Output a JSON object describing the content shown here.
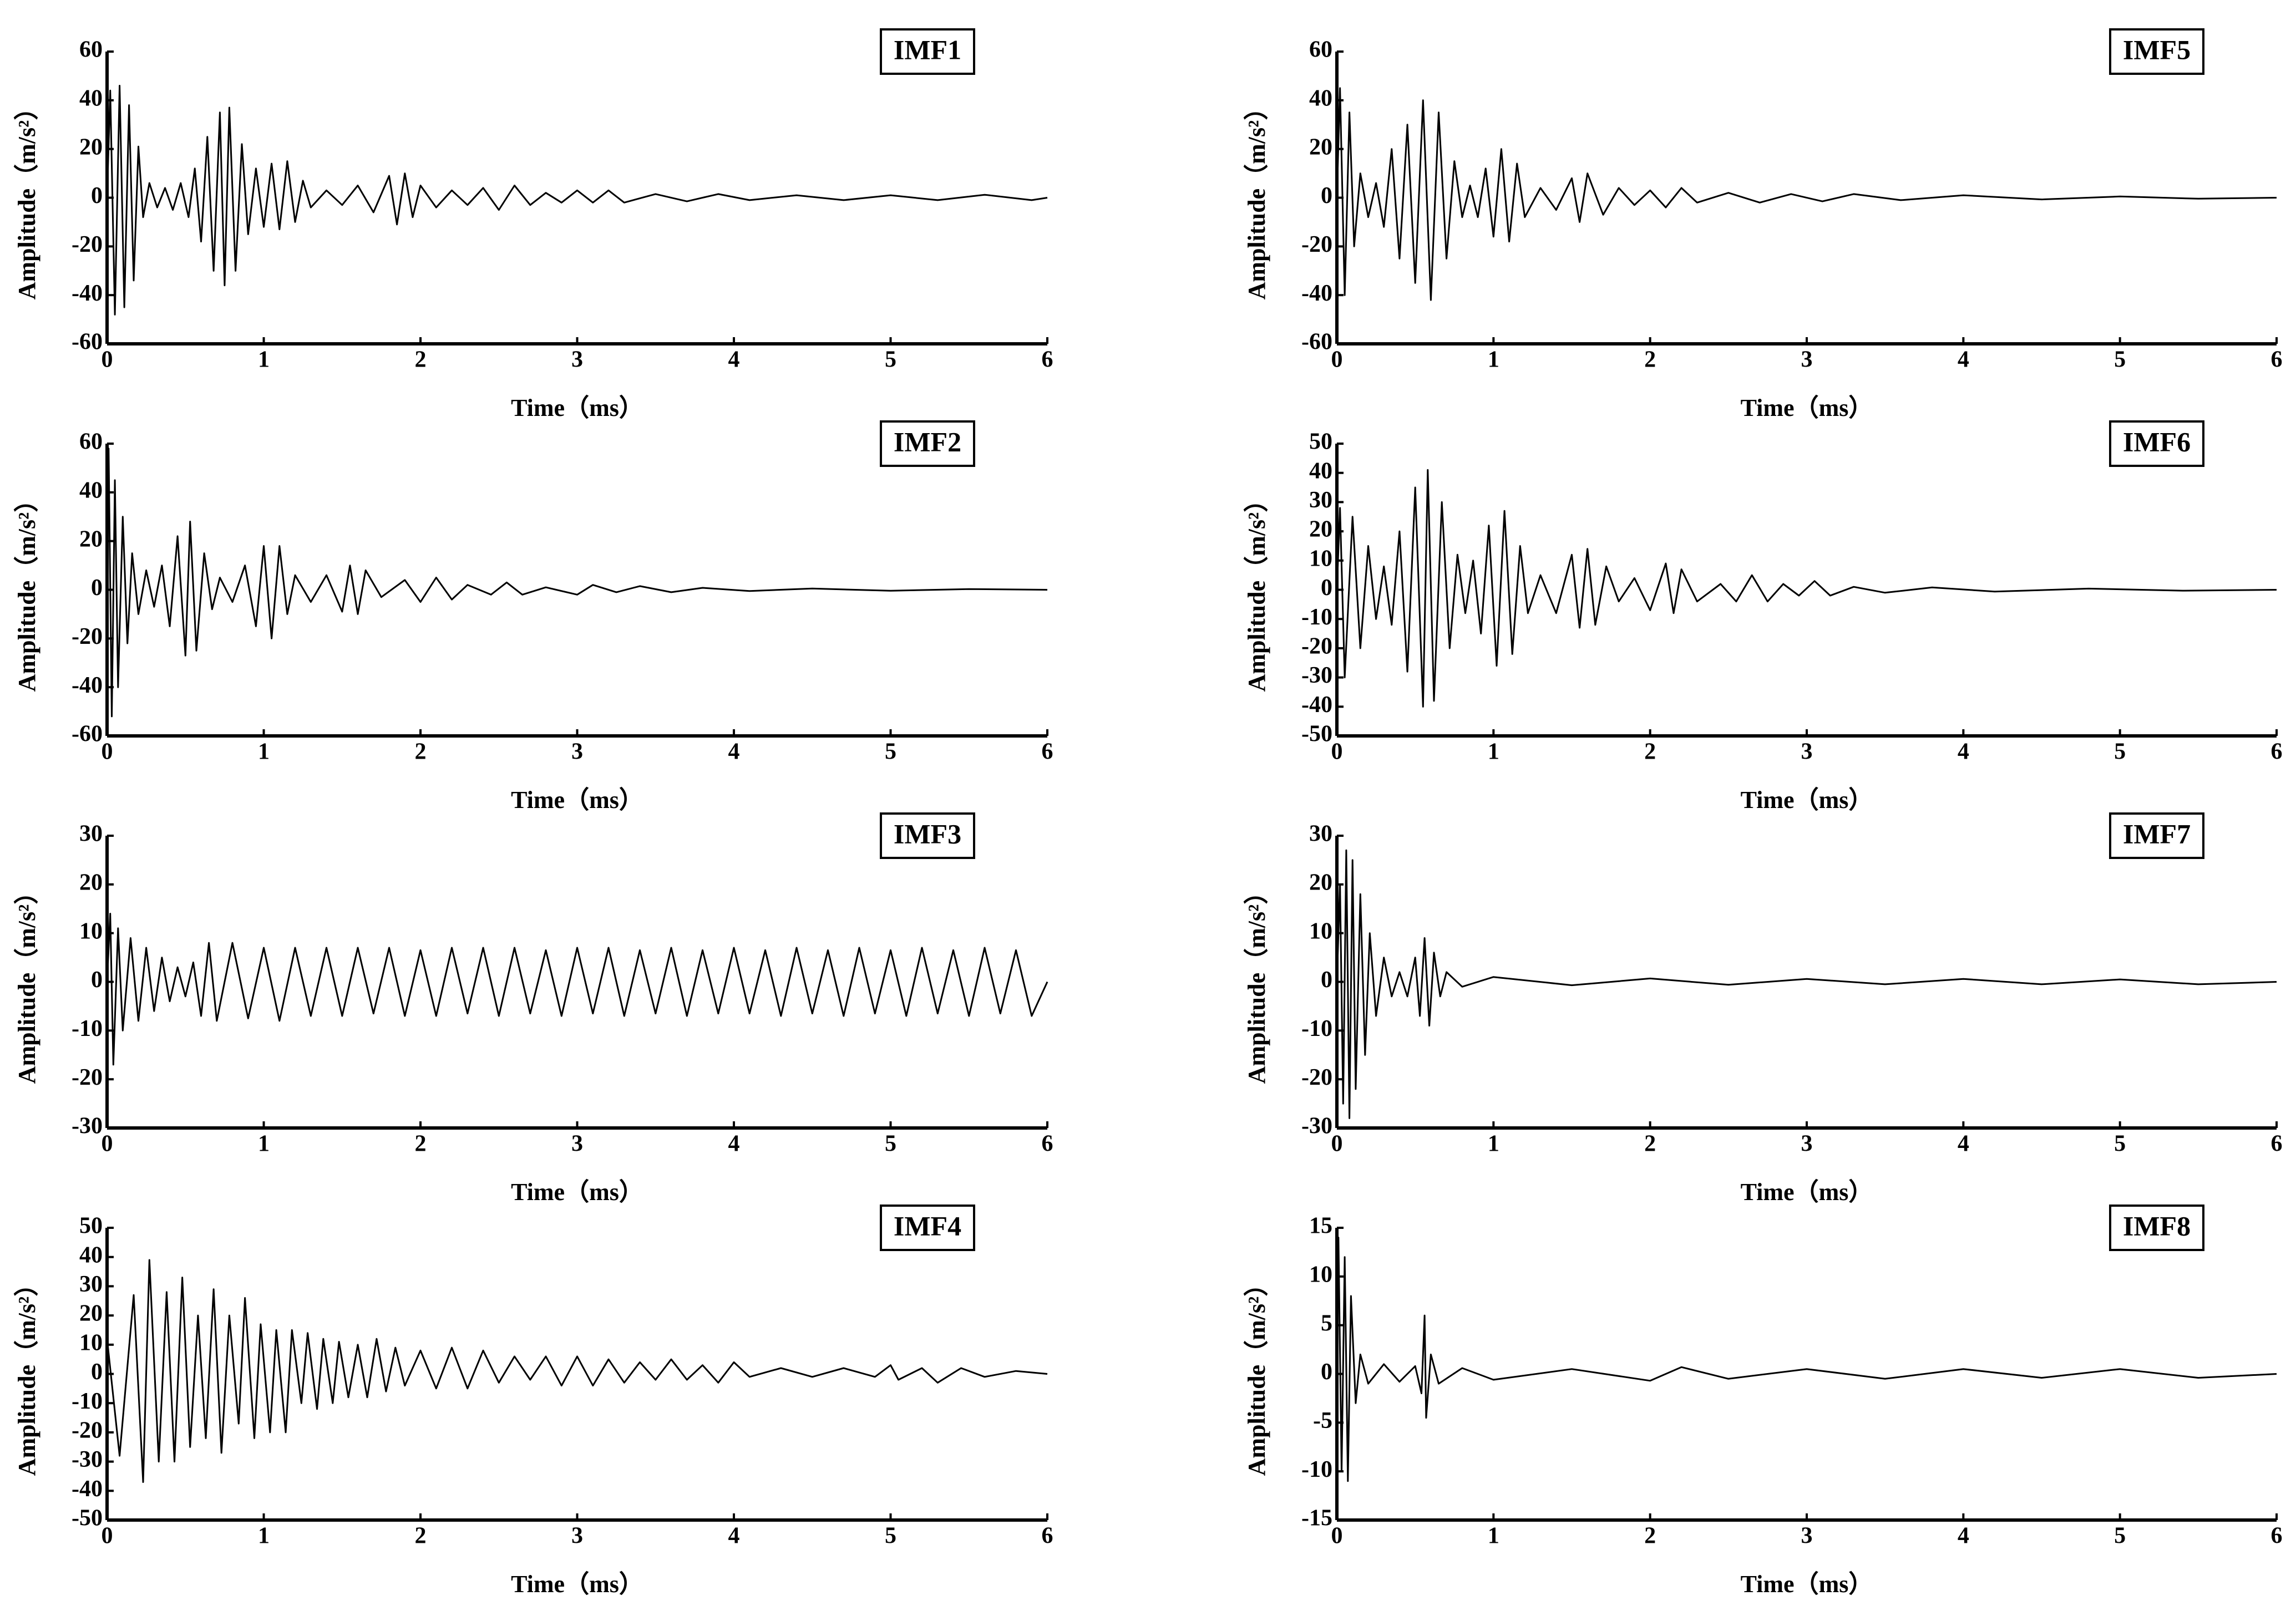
{
  "chart_data": [
    {
      "type": "line",
      "title": "IMF1",
      "xlabel": "Time（ms）",
      "ylabel": "Amplitude（m/s²）",
      "color": "#000000",
      "xlim": [
        0,
        6
      ],
      "xticks": [
        0,
        1,
        2,
        3,
        4,
        5,
        6
      ],
      "ylim": [
        -60,
        60
      ],
      "yticks": [
        -60,
        -40,
        -20,
        0,
        20,
        40,
        60
      ],
      "x": [
        0,
        0.02,
        0.05,
        0.08,
        0.11,
        0.14,
        0.17,
        0.2,
        0.23,
        0.27,
        0.32,
        0.37,
        0.42,
        0.47,
        0.52,
        0.56,
        0.6,
        0.64,
        0.68,
        0.72,
        0.75,
        0.78,
        0.82,
        0.86,
        0.9,
        0.95,
        1.0,
        1.05,
        1.1,
        1.15,
        1.2,
        1.25,
        1.3,
        1.4,
        1.5,
        1.6,
        1.7,
        1.8,
        1.85,
        1.9,
        1.95,
        2.0,
        2.1,
        2.2,
        2.3,
        2.4,
        2.5,
        2.6,
        2.7,
        2.8,
        2.9,
        3.0,
        3.1,
        3.2,
        3.3,
        3.5,
        3.7,
        3.9,
        4.1,
        4.4,
        4.7,
        5.0,
        5.3,
        5.6,
        5.9,
        6.0
      ],
      "values": [
        0,
        44,
        -48,
        46,
        -45,
        38,
        -34,
        21,
        -8,
        6,
        -4,
        4,
        -5,
        6,
        -8,
        12,
        -18,
        25,
        -30,
        35,
        -36,
        37,
        -30,
        22,
        -15,
        12,
        -12,
        14,
        -13,
        15,
        -10,
        7,
        -4,
        3,
        -3,
        5,
        -6,
        9,
        -11,
        10,
        -8,
        5,
        -4,
        3,
        -3,
        4,
        -5,
        5,
        -3,
        2,
        -2,
        3,
        -2,
        3,
        -2,
        1.5,
        -1.5,
        1.5,
        -1,
        1,
        -1,
        1,
        -1,
        1.2,
        -1,
        0
      ]
    },
    {
      "type": "line",
      "title": "IMF2",
      "xlabel": "Time（ms）",
      "ylabel": "Amplitude（m/s²）",
      "color": "#000000",
      "xlim": [
        0,
        6
      ],
      "xticks": [
        0,
        1,
        2,
        3,
        4,
        5,
        6
      ],
      "ylim": [
        -60,
        60
      ],
      "yticks": [
        -60,
        -40,
        -20,
        0,
        20,
        40,
        60
      ],
      "x": [
        0,
        0.01,
        0.03,
        0.05,
        0.07,
        0.1,
        0.13,
        0.16,
        0.2,
        0.25,
        0.3,
        0.35,
        0.4,
        0.45,
        0.5,
        0.53,
        0.57,
        0.62,
        0.67,
        0.72,
        0.8,
        0.88,
        0.95,
        1.0,
        1.05,
        1.1,
        1.15,
        1.2,
        1.3,
        1.4,
        1.5,
        1.55,
        1.6,
        1.65,
        1.75,
        1.9,
        2.0,
        2.1,
        2.2,
        2.3,
        2.45,
        2.55,
        2.65,
        2.8,
        3.0,
        3.1,
        3.25,
        3.4,
        3.6,
        3.8,
        4.1,
        4.5,
        5.0,
        5.5,
        6.0
      ],
      "values": [
        0,
        58,
        -52,
        45,
        -40,
        30,
        -22,
        15,
        -10,
        8,
        -7,
        10,
        -15,
        22,
        -27,
        28,
        -25,
        15,
        -8,
        5,
        -5,
        10,
        -15,
        18,
        -20,
        18,
        -10,
        6,
        -5,
        6,
        -9,
        10,
        -10,
        8,
        -3,
        4,
        -5,
        5,
        -4,
        2,
        -2,
        3,
        -2,
        1,
        -2,
        2,
        -1,
        1.5,
        -1,
        0.8,
        -0.5,
        0.5,
        -0.4,
        0.3,
        0
      ]
    },
    {
      "type": "line",
      "title": "IMF3",
      "xlabel": "Time（ms）",
      "ylabel": "Amplitude（m/s²）",
      "color": "#000000",
      "xlim": [
        0,
        6
      ],
      "xticks": [
        0,
        1,
        2,
        3,
        4,
        5,
        6
      ],
      "ylim": [
        -30,
        30
      ],
      "yticks": [
        -30,
        -20,
        -10,
        0,
        10,
        20,
        30
      ],
      "x": [
        0,
        0.02,
        0.04,
        0.07,
        0.1,
        0.15,
        0.2,
        0.25,
        0.3,
        0.35,
        0.4,
        0.45,
        0.5,
        0.55,
        0.6,
        0.65,
        0.7,
        0.8,
        0.9,
        1.0,
        1.1,
        1.2,
        1.3,
        1.4,
        1.5,
        1.6,
        1.7,
        1.8,
        1.9,
        2.0,
        2.1,
        2.2,
        2.3,
        2.4,
        2.5,
        2.6,
        2.7,
        2.8,
        2.9,
        3.0,
        3.1,
        3.2,
        3.3,
        3.4,
        3.5,
        3.6,
        3.7,
        3.8,
        3.9,
        4.0,
        4.1,
        4.2,
        4.3,
        4.4,
        4.5,
        4.6,
        4.7,
        4.8,
        4.9,
        5.0,
        5.1,
        5.2,
        5.3,
        5.4,
        5.5,
        5.6,
        5.7,
        5.8,
        5.9,
        6.0
      ],
      "values": [
        0,
        14,
        -17,
        11,
        -10,
        9,
        -8,
        7,
        -6,
        5,
        -4,
        3,
        -3,
        4,
        -7,
        8,
        -8,
        8,
        -7.5,
        7,
        -8,
        7,
        -7,
        7,
        -7,
        7,
        -6.5,
        7,
        -7,
        6.5,
        -7,
        7,
        -6.5,
        7,
        -7,
        7,
        -6.5,
        6.5,
        -7,
        7,
        -6.5,
        7,
        -7,
        6.5,
        -6.5,
        7,
        -7,
        6.5,
        -6.5,
        7,
        -6.5,
        6.5,
        -7,
        7,
        -6.5,
        6.5,
        -7,
        7,
        -6.5,
        6.5,
        -7,
        7,
        -6.5,
        6.5,
        -7,
        7,
        -6.5,
        6.5,
        -7,
        0
      ]
    },
    {
      "type": "line",
      "title": "IMF4",
      "xlabel": "Time（ms）",
      "ylabel": "Amplitude（m/s²）",
      "color": "#000000",
      "xlim": [
        0,
        6
      ],
      "xticks": [
        0,
        1,
        2,
        3,
        4,
        5,
        6
      ],
      "ylim": [
        -50,
        50
      ],
      "yticks": [
        -50,
        -40,
        -30,
        -20,
        -10,
        0,
        10,
        20,
        30,
        40,
        50
      ],
      "x": [
        0,
        0.08,
        0.17,
        0.23,
        0.27,
        0.33,
        0.38,
        0.43,
        0.48,
        0.53,
        0.58,
        0.63,
        0.68,
        0.73,
        0.78,
        0.84,
        0.88,
        0.94,
        0.98,
        1.04,
        1.08,
        1.14,
        1.18,
        1.24,
        1.28,
        1.34,
        1.38,
        1.44,
        1.48,
        1.54,
        1.6,
        1.66,
        1.72,
        1.78,
        1.84,
        1.9,
        2.0,
        2.1,
        2.2,
        2.3,
        2.4,
        2.5,
        2.6,
        2.7,
        2.8,
        2.9,
        3.0,
        3.1,
        3.2,
        3.3,
        3.4,
        3.5,
        3.6,
        3.7,
        3.8,
        3.9,
        4.0,
        4.1,
        4.3,
        4.5,
        4.7,
        4.9,
        5.0,
        5.05,
        5.2,
        5.3,
        5.45,
        5.6,
        5.8,
        6.0
      ],
      "values": [
        12,
        -28,
        27,
        -37,
        39,
        -30,
        28,
        -30,
        33,
        -25,
        20,
        -22,
        29,
        -27,
        20,
        -17,
        26,
        -22,
        17,
        -20,
        15,
        -20,
        15,
        -10,
        14,
        -12,
        12,
        -10,
        11,
        -8,
        10,
        -8,
        12,
        -6,
        9,
        -4,
        8,
        -5,
        9,
        -5,
        8,
        -3,
        6,
        -2,
        6,
        -4,
        6,
        -4,
        5,
        -3,
        4,
        -2,
        5,
        -2,
        3,
        -3,
        4,
        -1,
        2,
        -1,
        2,
        -1,
        3,
        -2,
        2,
        -3,
        2,
        -1,
        1,
        0
      ]
    },
    {
      "type": "line",
      "title": "IMF5",
      "xlabel": "Time（ms）",
      "ylabel": "Amplitude（m/s²）",
      "color": "#000000",
      "xlim": [
        0,
        6
      ],
      "xticks": [
        0,
        1,
        2,
        3,
        4,
        5,
        6
      ],
      "ylim": [
        -60,
        60
      ],
      "yticks": [
        -60,
        -40,
        -20,
        0,
        20,
        40,
        60
      ],
      "x": [
        0,
        0.02,
        0.05,
        0.08,
        0.11,
        0.15,
        0.2,
        0.25,
        0.3,
        0.35,
        0.4,
        0.45,
        0.5,
        0.55,
        0.6,
        0.65,
        0.7,
        0.75,
        0.8,
        0.85,
        0.9,
        0.95,
        1.0,
        1.05,
        1.1,
        1.15,
        1.2,
        1.3,
        1.4,
        1.5,
        1.55,
        1.6,
        1.7,
        1.8,
        1.9,
        2.0,
        2.1,
        2.2,
        2.3,
        2.5,
        2.7,
        2.9,
        3.1,
        3.3,
        3.6,
        4.0,
        4.5,
        5.0,
        5.5,
        6.0
      ],
      "values": [
        0,
        45,
        -40,
        35,
        -20,
        10,
        -8,
        6,
        -12,
        20,
        -25,
        30,
        -35,
        40,
        -42,
        35,
        -25,
        15,
        -8,
        5,
        -8,
        12,
        -16,
        20,
        -18,
        14,
        -8,
        4,
        -5,
        8,
        -10,
        10,
        -7,
        4,
        -3,
        3,
        -4,
        4,
        -2,
        2,
        -2,
        1.5,
        -1.5,
        1.5,
        -1,
        1,
        -0.7,
        0.5,
        -0.4,
        0
      ]
    },
    {
      "type": "line",
      "title": "IMF6",
      "xlabel": "Time（ms）",
      "ylabel": "Amplitude（m/s²）",
      "color": "#000000",
      "xlim": [
        0,
        6
      ],
      "xticks": [
        0,
        1,
        2,
        3,
        4,
        5,
        6
      ],
      "ylim": [
        -50,
        50
      ],
      "yticks": [
        -50,
        -40,
        -30,
        -20,
        -10,
        0,
        10,
        20,
        30,
        40,
        50
      ],
      "x": [
        0,
        0.02,
        0.05,
        0.1,
        0.15,
        0.2,
        0.25,
        0.3,
        0.35,
        0.4,
        0.45,
        0.5,
        0.55,
        0.58,
        0.62,
        0.67,
        0.72,
        0.77,
        0.82,
        0.87,
        0.92,
        0.97,
        1.02,
        1.07,
        1.12,
        1.17,
        1.22,
        1.3,
        1.4,
        1.5,
        1.55,
        1.6,
        1.65,
        1.72,
        1.8,
        1.9,
        2.0,
        2.1,
        2.15,
        2.2,
        2.3,
        2.45,
        2.55,
        2.65,
        2.75,
        2.85,
        2.95,
        3.05,
        3.15,
        3.3,
        3.5,
        3.8,
        4.2,
        4.8,
        5.4,
        6.0
      ],
      "values": [
        0,
        28,
        -30,
        25,
        -20,
        15,
        -10,
        8,
        -12,
        20,
        -28,
        35,
        -40,
        41,
        -38,
        30,
        -20,
        12,
        -8,
        10,
        -15,
        22,
        -26,
        27,
        -22,
        15,
        -8,
        5,
        -8,
        12,
        -13,
        14,
        -12,
        8,
        -4,
        4,
        -7,
        9,
        -8,
        7,
        -4,
        2,
        -4,
        5,
        -4,
        2,
        -2,
        3,
        -2,
        1,
        -1,
        0.8,
        -0.6,
        0.4,
        -0.3,
        0
      ]
    },
    {
      "type": "line",
      "title": "IMF7",
      "xlabel": "Time（ms）",
      "ylabel": "Amplitude（m/s²）",
      "color": "#000000",
      "xlim": [
        0,
        6
      ],
      "xticks": [
        0,
        1,
        2,
        3,
        4,
        5,
        6
      ],
      "ylim": [
        -30,
        30
      ],
      "yticks": [
        -30,
        -20,
        -10,
        0,
        10,
        20,
        30
      ],
      "x": [
        0,
        0.02,
        0.04,
        0.06,
        0.08,
        0.1,
        0.12,
        0.15,
        0.18,
        0.21,
        0.25,
        0.3,
        0.35,
        0.4,
        0.45,
        0.5,
        0.53,
        0.56,
        0.59,
        0.62,
        0.66,
        0.7,
        0.8,
        1.0,
        1.5,
        2.0,
        2.5,
        3.0,
        3.5,
        4.0,
        4.5,
        5.0,
        5.5,
        6.0
      ],
      "values": [
        0,
        20,
        -25,
        27,
        -28,
        25,
        -22,
        18,
        -15,
        10,
        -7,
        5,
        -3,
        2,
        -3,
        5,
        -7,
        9,
        -9,
        6,
        -3,
        2,
        -1,
        1,
        -0.7,
        0.7,
        -0.6,
        0.6,
        -0.5,
        0.6,
        -0.5,
        0.5,
        -0.5,
        0
      ]
    },
    {
      "type": "line",
      "title": "IMF8",
      "xlabel": "Time（ms）",
      "ylabel": "Amplitude（m/s²）",
      "color": "#000000",
      "xlim": [
        0,
        6
      ],
      "xticks": [
        0,
        1,
        2,
        3,
        4,
        5,
        6
      ],
      "ylim": [
        -15,
        15
      ],
      "yticks": [
        -15,
        -10,
        -5,
        0,
        5,
        10,
        15
      ],
      "x": [
        0,
        0.01,
        0.03,
        0.05,
        0.07,
        0.09,
        0.12,
        0.15,
        0.2,
        0.3,
        0.4,
        0.5,
        0.54,
        0.56,
        0.57,
        0.6,
        0.65,
        0.8,
        1.0,
        1.5,
        2.0,
        2.2,
        2.5,
        3.0,
        3.5,
        4.0,
        4.5,
        5.0,
        5.5,
        6.0
      ],
      "values": [
        0,
        14,
        -10,
        12,
        -11,
        8,
        -3,
        2,
        -1,
        1,
        -0.8,
        0.8,
        -2,
        6,
        -4.5,
        2,
        -1,
        0.6,
        -0.6,
        0.5,
        -0.7,
        0.7,
        -0.5,
        0.5,
        -0.5,
        0.5,
        -0.4,
        0.5,
        -0.4,
        0
      ]
    }
  ]
}
